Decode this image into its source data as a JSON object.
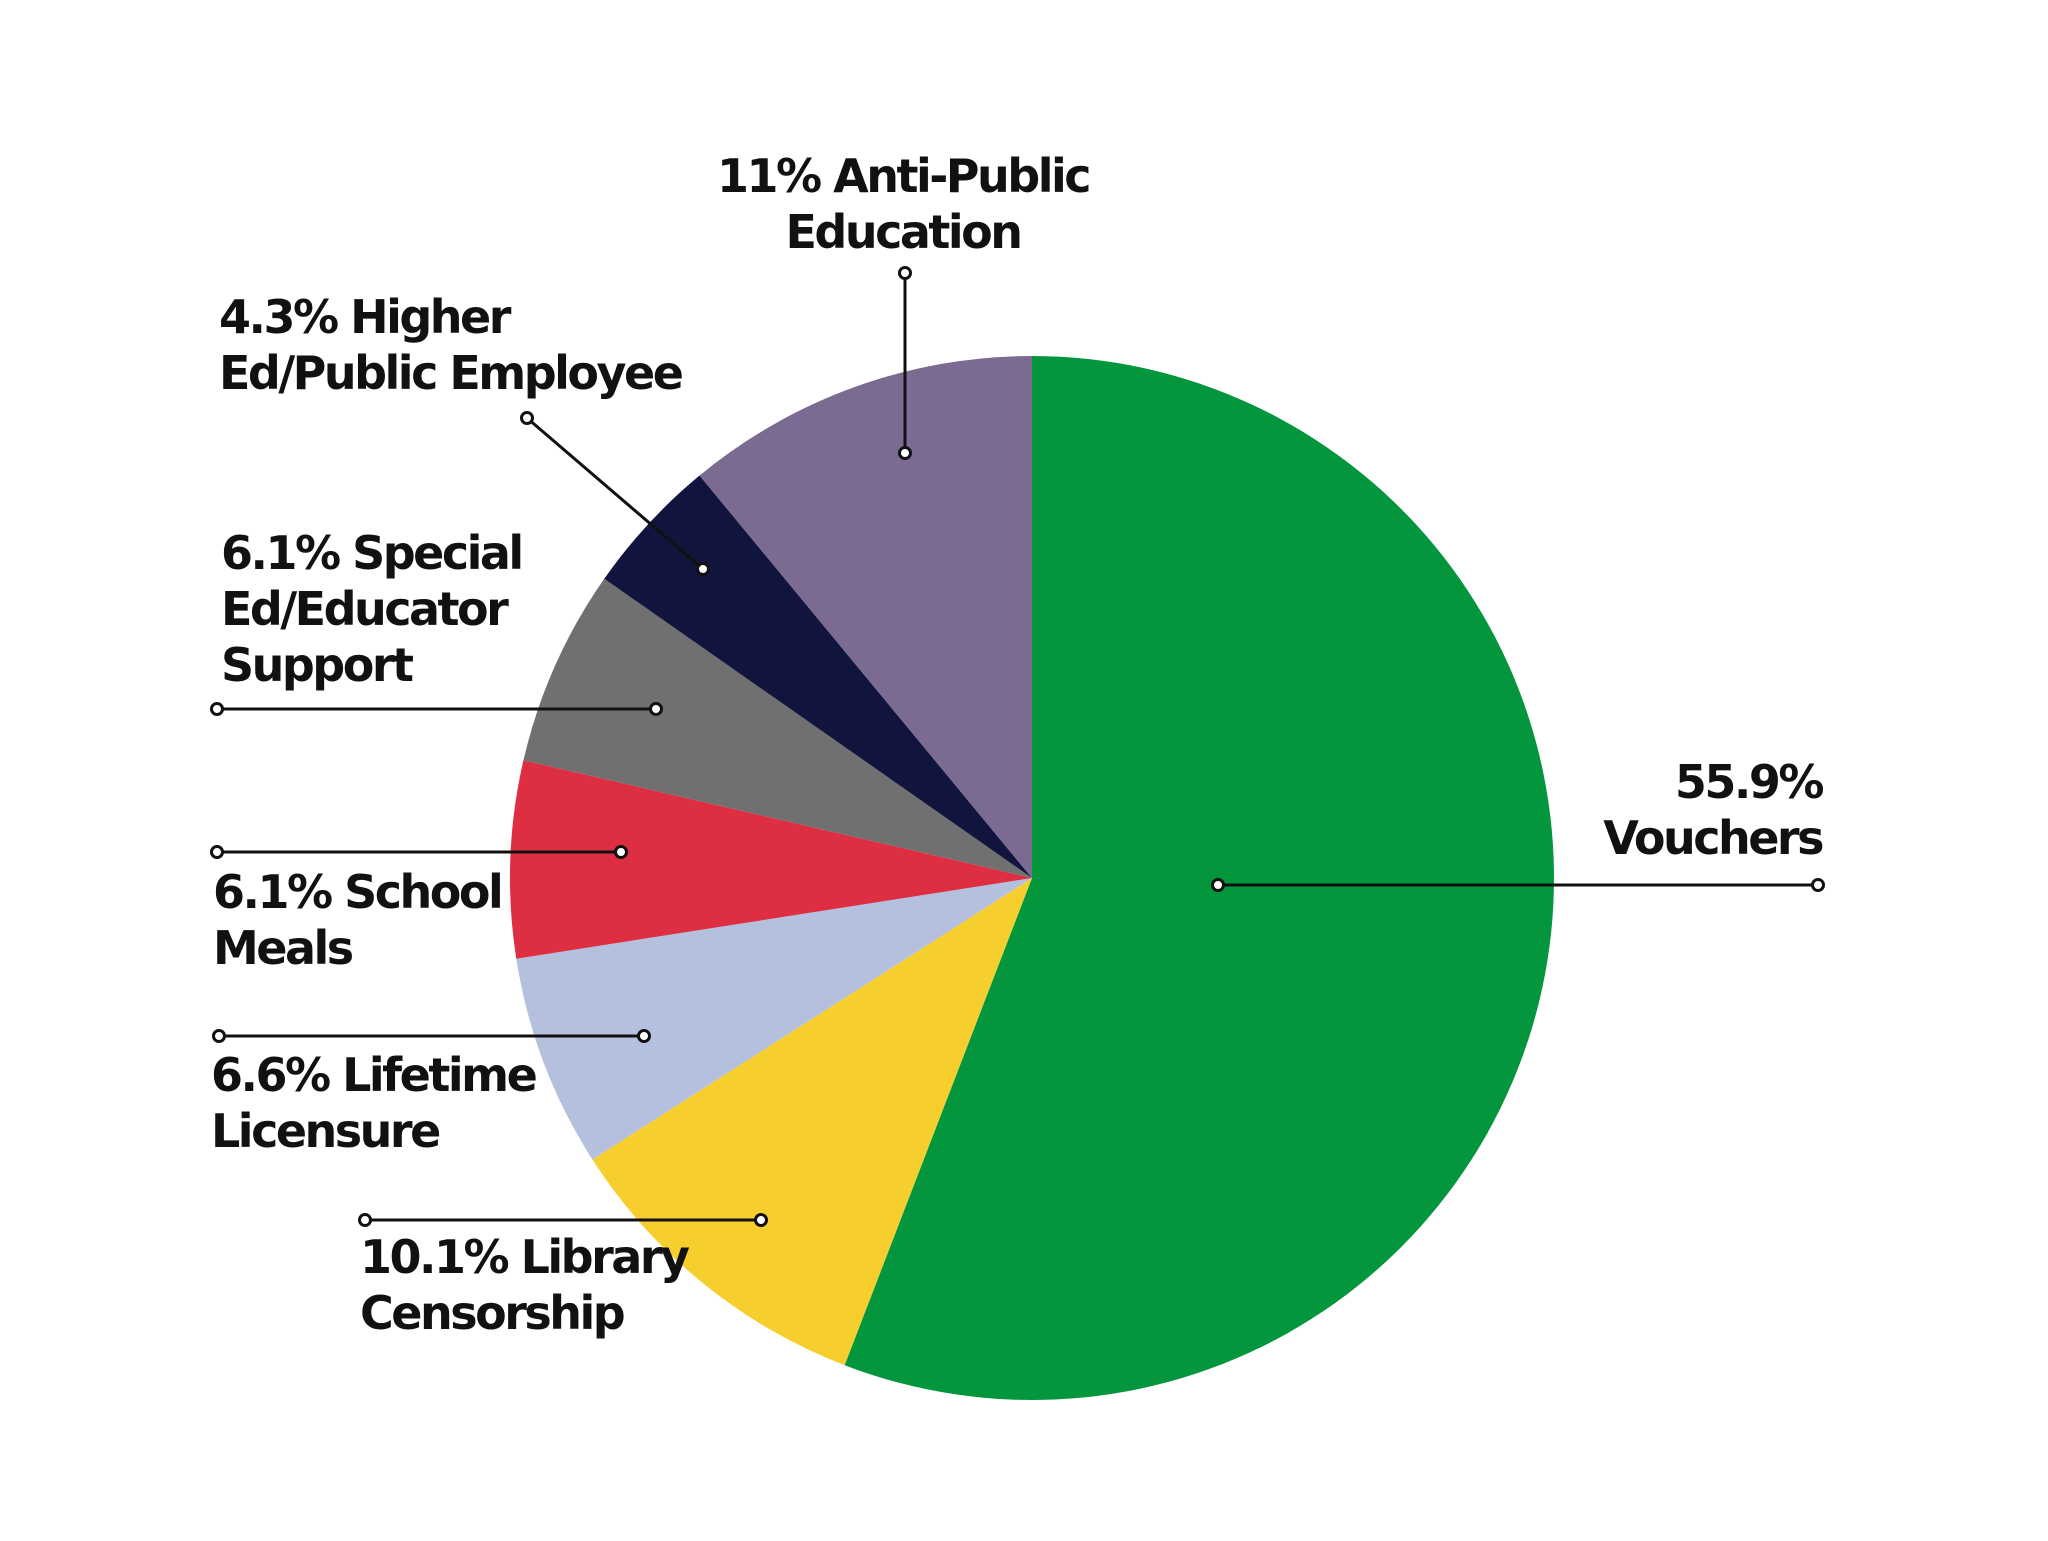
{
  "chart_data": {
    "type": "pie",
    "start_angle_deg": 0,
    "direction": "clockwise",
    "slices": [
      {
        "label": "Vouchers",
        "percent_label": "55.9%",
        "value": 55.9,
        "color": "#03963d"
      },
      {
        "label": "Library Censorship",
        "percent_label": "10.1%",
        "value": 10.1,
        "color": "#f6cf2f"
      },
      {
        "label": "Lifetime Licensure",
        "percent_label": "6.6%",
        "value": 6.6,
        "color": "#b4c0de"
      },
      {
        "label": "School Meals",
        "percent_label": "6.1%",
        "value": 6.1,
        "color": "#dd2e42"
      },
      {
        "label": "Special Ed/Educator Support",
        "percent_label": "6.1%",
        "value": 6.1,
        "color": "#707070"
      },
      {
        "label": "Higher Ed/Public Employee",
        "percent_label": "4.3%",
        "value": 4.3,
        "color": "#11143c"
      },
      {
        "label": "Anti-Public Education",
        "percent_label": "11%",
        "value": 11,
        "color": "#7b6a91"
      }
    ],
    "label_text": [
      [
        "55.9%",
        "Vouchers"
      ],
      [
        "10.1% Library",
        "Censorship"
      ],
      [
        "6.6% Lifetime",
        "Licensure"
      ],
      [
        "6.1% School",
        "Meals"
      ],
      [
        "6.1% Special",
        "Ed/Educator",
        "Support"
      ],
      [
        "4.3% Higher",
        "Ed/Public Employee"
      ],
      [
        "11% Anti-Public",
        "Education"
      ]
    ],
    "legend": "none",
    "leader_line_color": "#111111"
  }
}
